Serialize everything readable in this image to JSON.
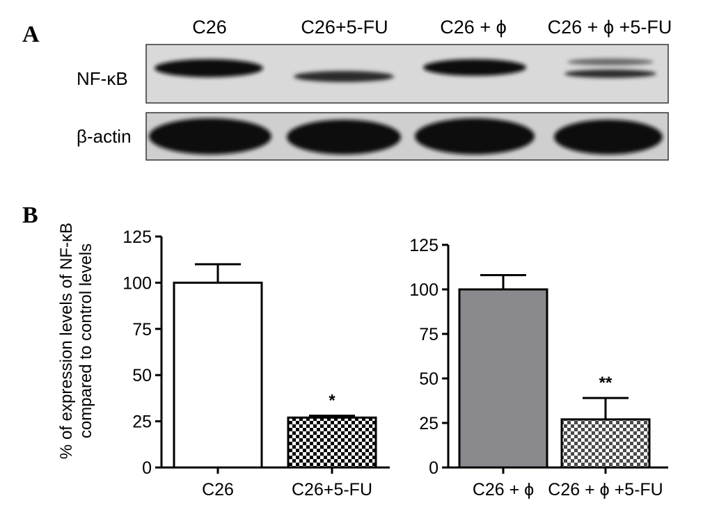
{
  "panel_a": {
    "letter": "A",
    "lanes": [
      "C26",
      "C26+5-FU",
      "C26 + ϕ",
      "C26 + ϕ +5-FU"
    ],
    "rows": [
      {
        "label": "NF-κB",
        "band_intensity": [
          1.0,
          0.35,
          1.0,
          0.4
        ]
      },
      {
        "label": "β-actin",
        "band_intensity": [
          1.0,
          1.0,
          1.0,
          1.0
        ]
      }
    ]
  },
  "panel_b": {
    "letter": "B",
    "ylabel_line1": "% of expression levels of NF-κB",
    "ylabel_line2": "compared to control levels"
  },
  "chart_data": [
    {
      "type": "bar",
      "categories": [
        "C26",
        "C26+5-FU"
      ],
      "values": [
        100,
        27
      ],
      "errors": [
        10,
        1
      ],
      "significance": [
        "",
        "*"
      ],
      "bar_styles": [
        "white",
        "checkered"
      ],
      "ylim": [
        0,
        125
      ],
      "yticks": [
        0,
        25,
        50,
        75,
        100,
        125
      ],
      "xlabel": "",
      "ylabel": "% of expression levels of NF-κB compared to control levels",
      "grid": false
    },
    {
      "type": "bar",
      "categories": [
        "C26 + ϕ",
        "C26 + ϕ +5-FU"
      ],
      "values": [
        100,
        27
      ],
      "errors": [
        8,
        12
      ],
      "significance": [
        "",
        "**"
      ],
      "bar_styles": [
        "gray",
        "checkered"
      ],
      "ylim": [
        0,
        125
      ],
      "yticks": [
        0,
        25,
        50,
        75,
        100,
        125
      ],
      "xlabel": "",
      "ylabel": "",
      "grid": false
    }
  ],
  "colors": {
    "axis": "#000000",
    "bar_white": "#ffffff",
    "bar_gray": "#8a8a8e",
    "blot_background": "#d9d9d9",
    "band": "#111111"
  }
}
